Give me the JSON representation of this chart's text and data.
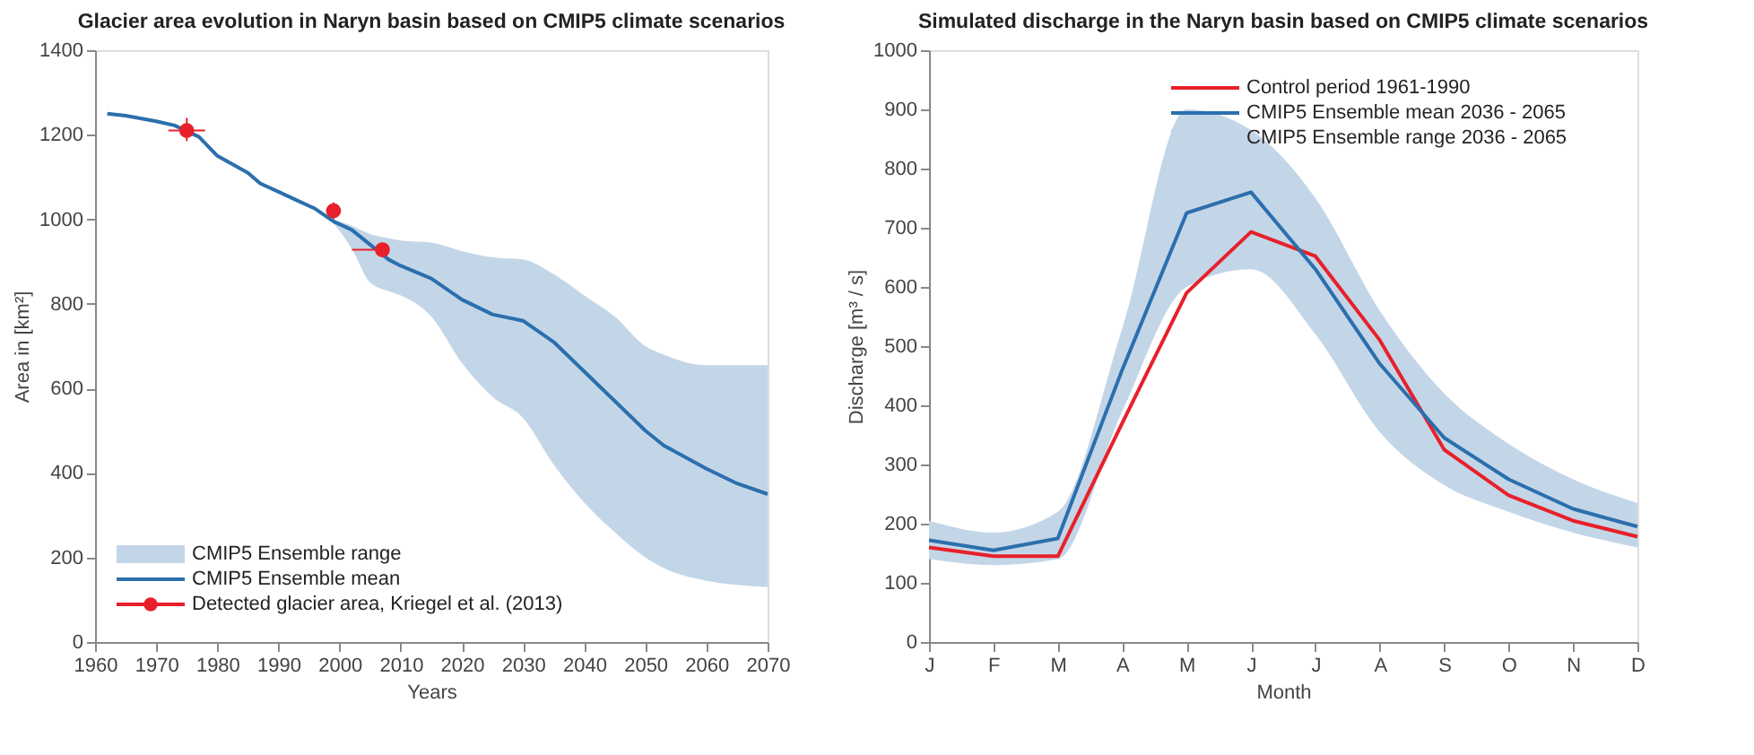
{
  "chart_data": [
    {
      "type": "line",
      "title": "Glacier area evolution in Naryn basin based on CMIP5 climate scenarios",
      "xlabel": "Years",
      "ylabel": "Area in [km²]",
      "xlim": [
        1960,
        2070
      ],
      "xticks": [
        1960,
        1970,
        1980,
        1990,
        2000,
        2010,
        2020,
        2030,
        2040,
        2050,
        2060,
        2070
      ],
      "ylim": [
        0,
        1400
      ],
      "yticks": [
        0,
        200,
        400,
        600,
        800,
        1000,
        1200,
        1400
      ],
      "grid": false,
      "legend": "bottom left",
      "annotations": [
        "CMIP5 Ensemble range"
      ],
      "series": [
        {
          "name": "CMIP5 Ensemble mean",
          "color": "#2b6fad",
          "line_style": "solid",
          "marker": "none",
          "x": [
            1962,
            1965,
            1970,
            1973,
            1977,
            1980,
            1985,
            1987,
            1990,
            1993,
            1996,
            1999,
            2002,
            2005,
            2008,
            2010,
            2015,
            2020,
            2025,
            2030,
            2035,
            2040,
            2045,
            2050,
            2053,
            2060,
            2065,
            2070
          ],
          "values": [
            1250,
            1245,
            1232,
            1222,
            1195,
            1150,
            1110,
            1085,
            1065,
            1045,
            1025,
            995,
            975,
            940,
            905,
            890,
            860,
            810,
            775,
            760,
            710,
            640,
            570,
            500,
            465,
            410,
            375,
            350
          ],
          "lower": [
            1250,
            1245,
            1232,
            1222,
            1195,
            1150,
            1110,
            1085,
            1065,
            1045,
            1025,
            990,
            930,
            850,
            830,
            820,
            770,
            660,
            580,
            530,
            420,
            330,
            260,
            200,
            175,
            145,
            135,
            130
          ],
          "upper": [
            1250,
            1245,
            1232,
            1222,
            1195,
            1150,
            1110,
            1085,
            1065,
            1045,
            1025,
            1000,
            985,
            965,
            955,
            950,
            945,
            925,
            910,
            905,
            870,
            820,
            770,
            700,
            680,
            655,
            655,
            655
          ]
        },
        {
          "name": "Detected glacier area, Kriegel et al. (2013)",
          "type": "scatter",
          "color": "#e8202a",
          "marker": "circle",
          "x": [
            1975,
            1999,
            2007
          ],
          "values": [
            1210,
            1020,
            928
          ],
          "errors": [
            [
              1185,
              1240
            ],
            [
              1000,
              1040
            ],
            [
              915,
              940
            ]
          ],
          "xerrors": [
            [
              1972,
              1978
            ],
            null,
            [
              2002,
              2008
            ]
          ]
        }
      ]
    },
    {
      "type": "line",
      "title": "Simulated discharge in the Naryn basin based on CMIP5 climate scenarios",
      "xlabel": "Month",
      "ylabel": "Discharge [m³ / s]",
      "categories": [
        "J",
        "F",
        "M",
        "A",
        "M",
        "J",
        "J",
        "A",
        "S",
        "O",
        "N",
        "D"
      ],
      "ylim": [
        0,
        1000
      ],
      "yticks": [
        0,
        100,
        200,
        300,
        400,
        500,
        600,
        700,
        800,
        900,
        1000
      ],
      "grid": false,
      "legend": "top right",
      "annotations": [
        "CMIP5 Ensemble range 2036 - 2065"
      ],
      "series": [
        {
          "name": "Control period 1961-1990",
          "color": "#e8202a",
          "line_style": "solid",
          "marker": "none",
          "values": [
            160,
            145,
            145,
            370,
            590,
            693,
            652,
            510,
            325,
            248,
            205,
            178
          ]
        },
        {
          "name": "CMIP5 Ensemble mean 2036 - 2065",
          "color": "#2b6fad",
          "line_style": "solid",
          "marker": "none",
          "values": [
            172,
            155,
            175,
            460,
            725,
            760,
            630,
            470,
            345,
            275,
            225,
            195
          ],
          "lower": [
            140,
            130,
            140,
            390,
            600,
            630,
            520,
            355,
            265,
            220,
            185,
            160
          ],
          "upper": [
            205,
            185,
            220,
            530,
            900,
            865,
            750,
            560,
            420,
            335,
            275,
            235
          ]
        }
      ]
    }
  ]
}
